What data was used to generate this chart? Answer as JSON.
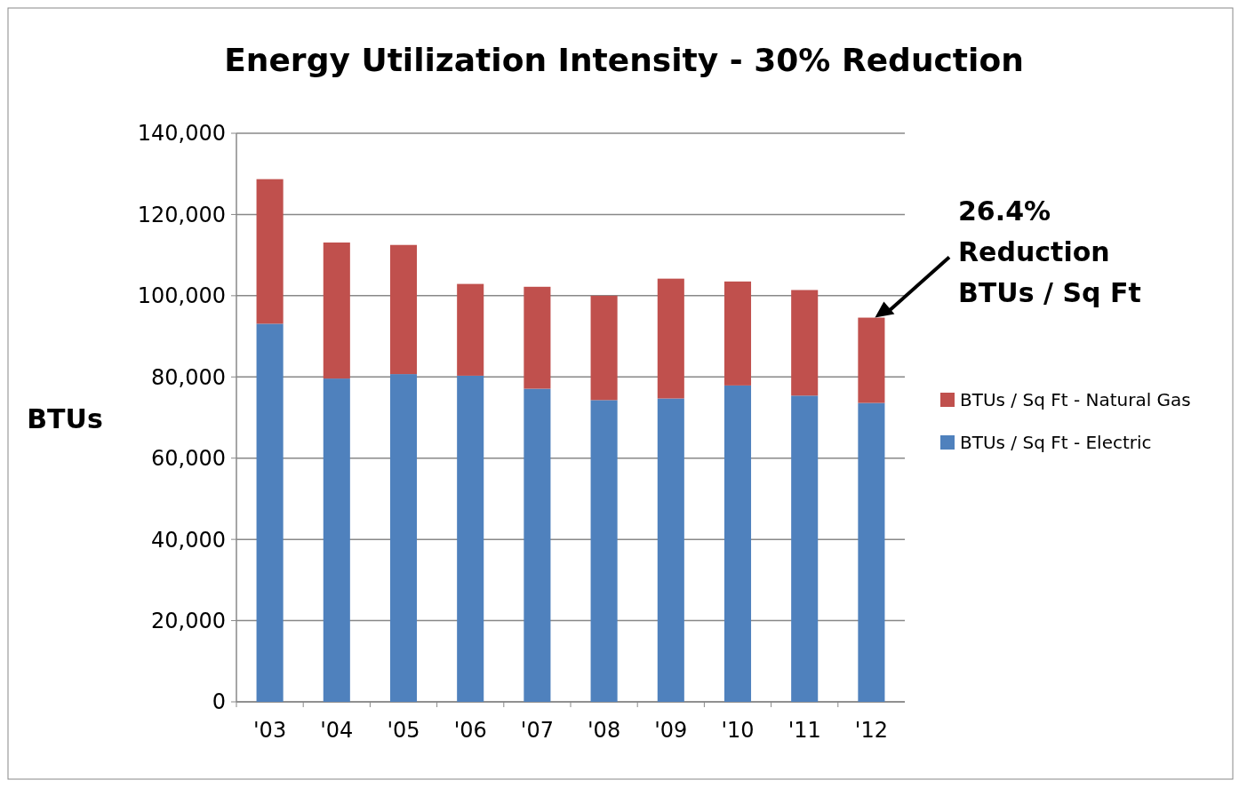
{
  "chart_data": {
    "type": "bar",
    "title": "Energy Utilization Intensity - 30% Reduction",
    "ylabel": "BTUs",
    "categories": [
      "'03",
      "'04",
      "'05",
      "'06",
      "'07",
      "'08",
      "'09",
      "'10",
      "'11",
      "'12"
    ],
    "stacked": true,
    "series": [
      {
        "name": "BTUs / Sq Ft - Electric",
        "color": "#4f81bd",
        "values": [
          93100,
          79600,
          80700,
          80300,
          77100,
          74300,
          74700,
          77900,
          75400,
          73600
        ]
      },
      {
        "name": "BTUs / Sq Ft - Natural Gas",
        "color": "#c0504d",
        "values": [
          35600,
          33500,
          31800,
          22600,
          25100,
          25700,
          29500,
          25600,
          26000,
          21000
        ]
      }
    ],
    "ylim": [
      0,
      140000
    ],
    "yticks": [
      {
        "value": 0,
        "label": "0"
      },
      {
        "value": 20000,
        "label": "20,000"
      },
      {
        "value": 40000,
        "label": "40,000"
      },
      {
        "value": 60000,
        "label": "60,000"
      },
      {
        "value": 80000,
        "label": "80,000"
      },
      {
        "value": 100000,
        "label": "100,000"
      },
      {
        "value": 120000,
        "label": "120,000"
      },
      {
        "value": 140000,
        "label": "140,000"
      }
    ],
    "grid": "y",
    "legend": "right",
    "annotations": [
      "26.4%\nReduction\nBTUs / Sq Ft"
    ]
  }
}
